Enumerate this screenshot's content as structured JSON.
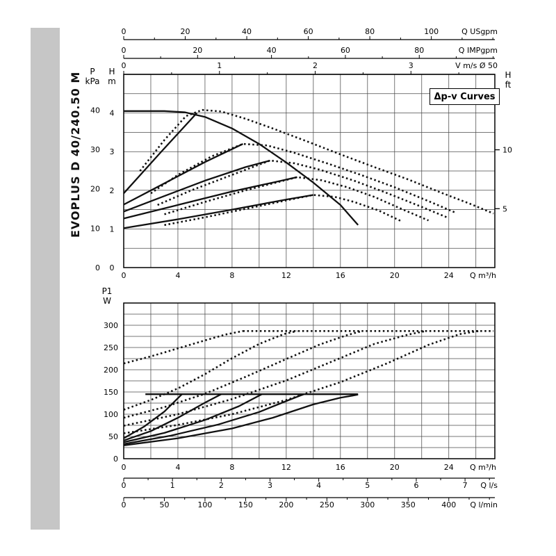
{
  "sidebar": {
    "label": "EVOPLUS D 40/240.50 M"
  },
  "legend": {
    "label": "Δp-v Curves"
  },
  "colors": {
    "curve": "#111111",
    "grid": "#4a4a4a",
    "axis": "#000000",
    "sidebar_bg": "#c6c6c6"
  },
  "chart_data": [
    {
      "name": "head-flow-chart",
      "type": "line",
      "title": "Δp-v Curves",
      "x_axis": {
        "unit": "Q m³/h",
        "min": 0,
        "max": 27.4,
        "grid_step": 2,
        "tick_labels": [
          0,
          4,
          8,
          12,
          16,
          20,
          24
        ]
      },
      "y_axis": {
        "unit": "H m",
        "min": 0,
        "max": 5,
        "grid_step": 0.5
      },
      "left_axis_m": {
        "unit_top": "H",
        "unit_bottom": "m",
        "tick_labels": [
          4,
          3,
          2,
          1,
          0
        ]
      },
      "left_axis_kpa": {
        "unit_top": "P",
        "unit_bottom": "kPa",
        "tick_labels": [
          40,
          30,
          20,
          10,
          0
        ],
        "kpa_per_m": 9.81
      },
      "right_axis_ft": {
        "unit_top": "H",
        "unit_bottom": "ft",
        "ticks": [
          10,
          5
        ],
        "m_per_ft": 0.3048
      },
      "top_axes": [
        {
          "name": "q-usgpm",
          "units_per_m3h": 4.4029,
          "ticks": [
            0,
            20,
            40,
            60,
            80,
            100
          ],
          "minor_step": 10,
          "unit": "Q USgpm"
        },
        {
          "name": "q-impgpm",
          "units_per_m3h": 3.6662,
          "ticks": [
            0,
            20,
            40,
            60,
            80
          ],
          "minor_step": 10,
          "unit": "Q IMPgpm"
        },
        {
          "name": "v-ms",
          "units_per_m3h": 0.14147,
          "ticks": [
            0,
            1,
            2,
            3
          ],
          "minor_step": 0.5,
          "unit": "V m/s Ø 50"
        }
      ],
      "series": [
        {
          "name": "max-speed-curve",
          "style": "solid",
          "points": [
            [
              0,
              4.05
            ],
            [
              3,
              4.05
            ],
            [
              4.5,
              4.02
            ],
            [
              6,
              3.9
            ],
            [
              8,
              3.6
            ],
            [
              10,
              3.2
            ],
            [
              12,
              2.72
            ],
            [
              14,
              2.2
            ],
            [
              16,
              1.62
            ],
            [
              17.3,
              1.1
            ]
          ]
        },
        {
          "name": "dpv-line-1",
          "style": "solid",
          "points": [
            [
              0,
              1.92
            ],
            [
              2.7,
              2.97
            ],
            [
              5.4,
              4.0
            ]
          ]
        },
        {
          "name": "dpv-line-2",
          "style": "solid",
          "points": [
            [
              0,
              1.63
            ],
            [
              3,
              2.18
            ],
            [
              6,
              2.73
            ],
            [
              8.8,
              3.2
            ]
          ]
        },
        {
          "name": "dpv-line-3",
          "style": "solid",
          "points": [
            [
              0,
              1.45
            ],
            [
              3,
              1.85
            ],
            [
              6,
              2.25
            ],
            [
              9,
              2.6
            ],
            [
              10.8,
              2.77
            ]
          ]
        },
        {
          "name": "dpv-line-4",
          "style": "solid",
          "points": [
            [
              0,
              1.27
            ],
            [
              4,
              1.62
            ],
            [
              8,
              1.97
            ],
            [
              11,
              2.2
            ],
            [
              12.8,
              2.34
            ]
          ]
        },
        {
          "name": "dpv-line-5",
          "style": "solid",
          "points": [
            [
              0,
              1.02
            ],
            [
              4,
              1.25
            ],
            [
              8,
              1.5
            ],
            [
              12,
              1.76
            ],
            [
              14,
              1.88
            ]
          ]
        },
        {
          "name": "dotted-curve-1",
          "style": "dotted",
          "points": [
            [
              1.2,
              2.5
            ],
            [
              3,
              3.3
            ],
            [
              4.6,
              3.92
            ],
            [
              5.8,
              4.08
            ],
            [
              7.2,
              4.04
            ],
            [
              9,
              3.85
            ],
            [
              11,
              3.6
            ],
            [
              13.5,
              3.27
            ],
            [
              16,
              2.93
            ],
            [
              18.5,
              2.6
            ],
            [
              21,
              2.28
            ],
            [
              23.5,
              1.93
            ],
            [
              25.5,
              1.66
            ],
            [
              27.3,
              1.4
            ]
          ]
        },
        {
          "name": "dotted-curve-2",
          "style": "dotted",
          "points": [
            [
              2,
              1.92
            ],
            [
              4,
              2.4
            ],
            [
              6.5,
              2.88
            ],
            [
              8.8,
              3.2
            ],
            [
              10.6,
              3.16
            ],
            [
              12.5,
              2.98
            ],
            [
              15,
              2.7
            ],
            [
              17.5,
              2.4
            ],
            [
              20,
              2.08
            ],
            [
              22.5,
              1.72
            ],
            [
              24.5,
              1.42
            ]
          ]
        },
        {
          "name": "dotted-curve-3",
          "style": "dotted",
          "points": [
            [
              2.5,
              1.62
            ],
            [
              5,
              2.0
            ],
            [
              8,
              2.4
            ],
            [
              10.8,
              2.77
            ],
            [
              12.6,
              2.7
            ],
            [
              14.5,
              2.53
            ],
            [
              17,
              2.25
            ],
            [
              19.5,
              1.92
            ],
            [
              22,
              1.57
            ],
            [
              24,
              1.28
            ]
          ]
        },
        {
          "name": "dotted-curve-4",
          "style": "dotted",
          "points": [
            [
              3,
              1.38
            ],
            [
              6,
              1.7
            ],
            [
              9,
              2.0
            ],
            [
              12.8,
              2.34
            ],
            [
              14.6,
              2.26
            ],
            [
              16.5,
              2.08
            ],
            [
              18.5,
              1.83
            ],
            [
              20.5,
              1.52
            ],
            [
              22.5,
              1.22
            ]
          ]
        },
        {
          "name": "dotted-curve-5",
          "style": "dotted",
          "points": [
            [
              3,
              1.1
            ],
            [
              6,
              1.3
            ],
            [
              9,
              1.52
            ],
            [
              12,
              1.74
            ],
            [
              14,
              1.88
            ],
            [
              15.6,
              1.83
            ],
            [
              17,
              1.7
            ],
            [
              18.8,
              1.48
            ],
            [
              20.5,
              1.2
            ]
          ]
        }
      ]
    },
    {
      "name": "power-flow-chart",
      "type": "line",
      "title": "P1 power curves",
      "x_axis": {
        "unit": "Q m³/h",
        "min": 0,
        "max": 27.4,
        "grid_step": 2,
        "tick_labels": [
          0,
          4,
          8,
          12,
          16,
          20,
          24
        ]
      },
      "y_axis": {
        "unit_top": "P1",
        "unit_bottom": "W",
        "min": 0,
        "max": 350,
        "grid_step": 25,
        "tick_labels": [
          300,
          250,
          200,
          150,
          100,
          50,
          0
        ]
      },
      "bottom_axes": [
        {
          "name": "q-ls",
          "units_per_m3h": 0.27778,
          "ticks": [
            0,
            1,
            2,
            3,
            4,
            5,
            6,
            7
          ],
          "minor_step": 0.5,
          "unit": "Q l/s"
        },
        {
          "name": "q-lmin",
          "units_per_m3h": 16.6667,
          "ticks": [
            0,
            50,
            100,
            150,
            200,
            250,
            300,
            350,
            400
          ],
          "minor_step": 25,
          "unit": "Q l/min"
        }
      ],
      "series": [
        {
          "name": "p1-limit-single",
          "style": "solid",
          "points": [
            [
              1.6,
              145
            ],
            [
              17.3,
              145
            ]
          ]
        },
        {
          "name": "p1-curve-1",
          "style": "solid",
          "points": [
            [
              0,
              46
            ],
            [
              1.5,
              72
            ],
            [
              3,
              106
            ],
            [
              4.3,
              145
            ]
          ]
        },
        {
          "name": "p1-curve-2",
          "style": "solid",
          "points": [
            [
              0,
              41
            ],
            [
              2,
              62
            ],
            [
              4,
              92
            ],
            [
              6,
              126
            ],
            [
              7.2,
              145
            ]
          ]
        },
        {
          "name": "p1-curve-3",
          "style": "solid",
          "points": [
            [
              0,
              37
            ],
            [
              3,
              58
            ],
            [
              6,
              87
            ],
            [
              8.5,
              118
            ],
            [
              10.2,
              145
            ]
          ]
        },
        {
          "name": "p1-curve-4",
          "style": "solid",
          "points": [
            [
              0,
              33
            ],
            [
              3.5,
              52
            ],
            [
              7,
              77
            ],
            [
              10,
              105
            ],
            [
              12.2,
              132
            ],
            [
              13.3,
              145
            ]
          ]
        },
        {
          "name": "p1-curve-5",
          "style": "solid",
          "points": [
            [
              0,
              30
            ],
            [
              4,
              46
            ],
            [
              8,
              68
            ],
            [
              11,
              92
            ],
            [
              14,
              122
            ],
            [
              16,
              137
            ],
            [
              17.3,
              144
            ]
          ]
        },
        {
          "name": "p1-limit-max",
          "style": "dotted",
          "points": [
            [
              8.8,
              287
            ],
            [
              27.3,
              287
            ]
          ]
        },
        {
          "name": "p1-dotted-1",
          "style": "dotted",
          "points": [
            [
              0,
              214
            ],
            [
              2,
              230
            ],
            [
              4,
              248
            ],
            [
              6,
              266
            ],
            [
              7.5,
              279
            ],
            [
              8.8,
              287
            ]
          ]
        },
        {
          "name": "p1-dotted-2",
          "style": "dotted",
          "points": [
            [
              0,
              110
            ],
            [
              2,
              132
            ],
            [
              4,
              158
            ],
            [
              6,
              190
            ],
            [
              8,
              226
            ],
            [
              10,
              258
            ],
            [
              11.8,
              280
            ],
            [
              12.8,
              287
            ]
          ]
        },
        {
          "name": "p1-dotted-3",
          "style": "dotted",
          "points": [
            [
              0,
              92
            ],
            [
              3,
              116
            ],
            [
              6,
              146
            ],
            [
              9,
              184
            ],
            [
              12,
              224
            ],
            [
              14.5,
              257
            ],
            [
              16.5,
              278
            ],
            [
              17.6,
              287
            ]
          ]
        },
        {
          "name": "p1-dotted-4",
          "style": "dotted",
          "points": [
            [
              0,
              74
            ],
            [
              4,
              100
            ],
            [
              8,
              134
            ],
            [
              12,
              176
            ],
            [
              15.5,
              220
            ],
            [
              18.5,
              258
            ],
            [
              21,
              279
            ],
            [
              22.3,
              287
            ]
          ]
        },
        {
          "name": "p1-dotted-5",
          "style": "dotted",
          "points": [
            [
              0,
              57
            ],
            [
              4,
              76
            ],
            [
              8,
              100
            ],
            [
              12,
              132
            ],
            [
              16,
              172
            ],
            [
              19.5,
              215
            ],
            [
              22.5,
              256
            ],
            [
              24.8,
              280
            ],
            [
              26.2,
              287
            ]
          ]
        }
      ]
    }
  ]
}
